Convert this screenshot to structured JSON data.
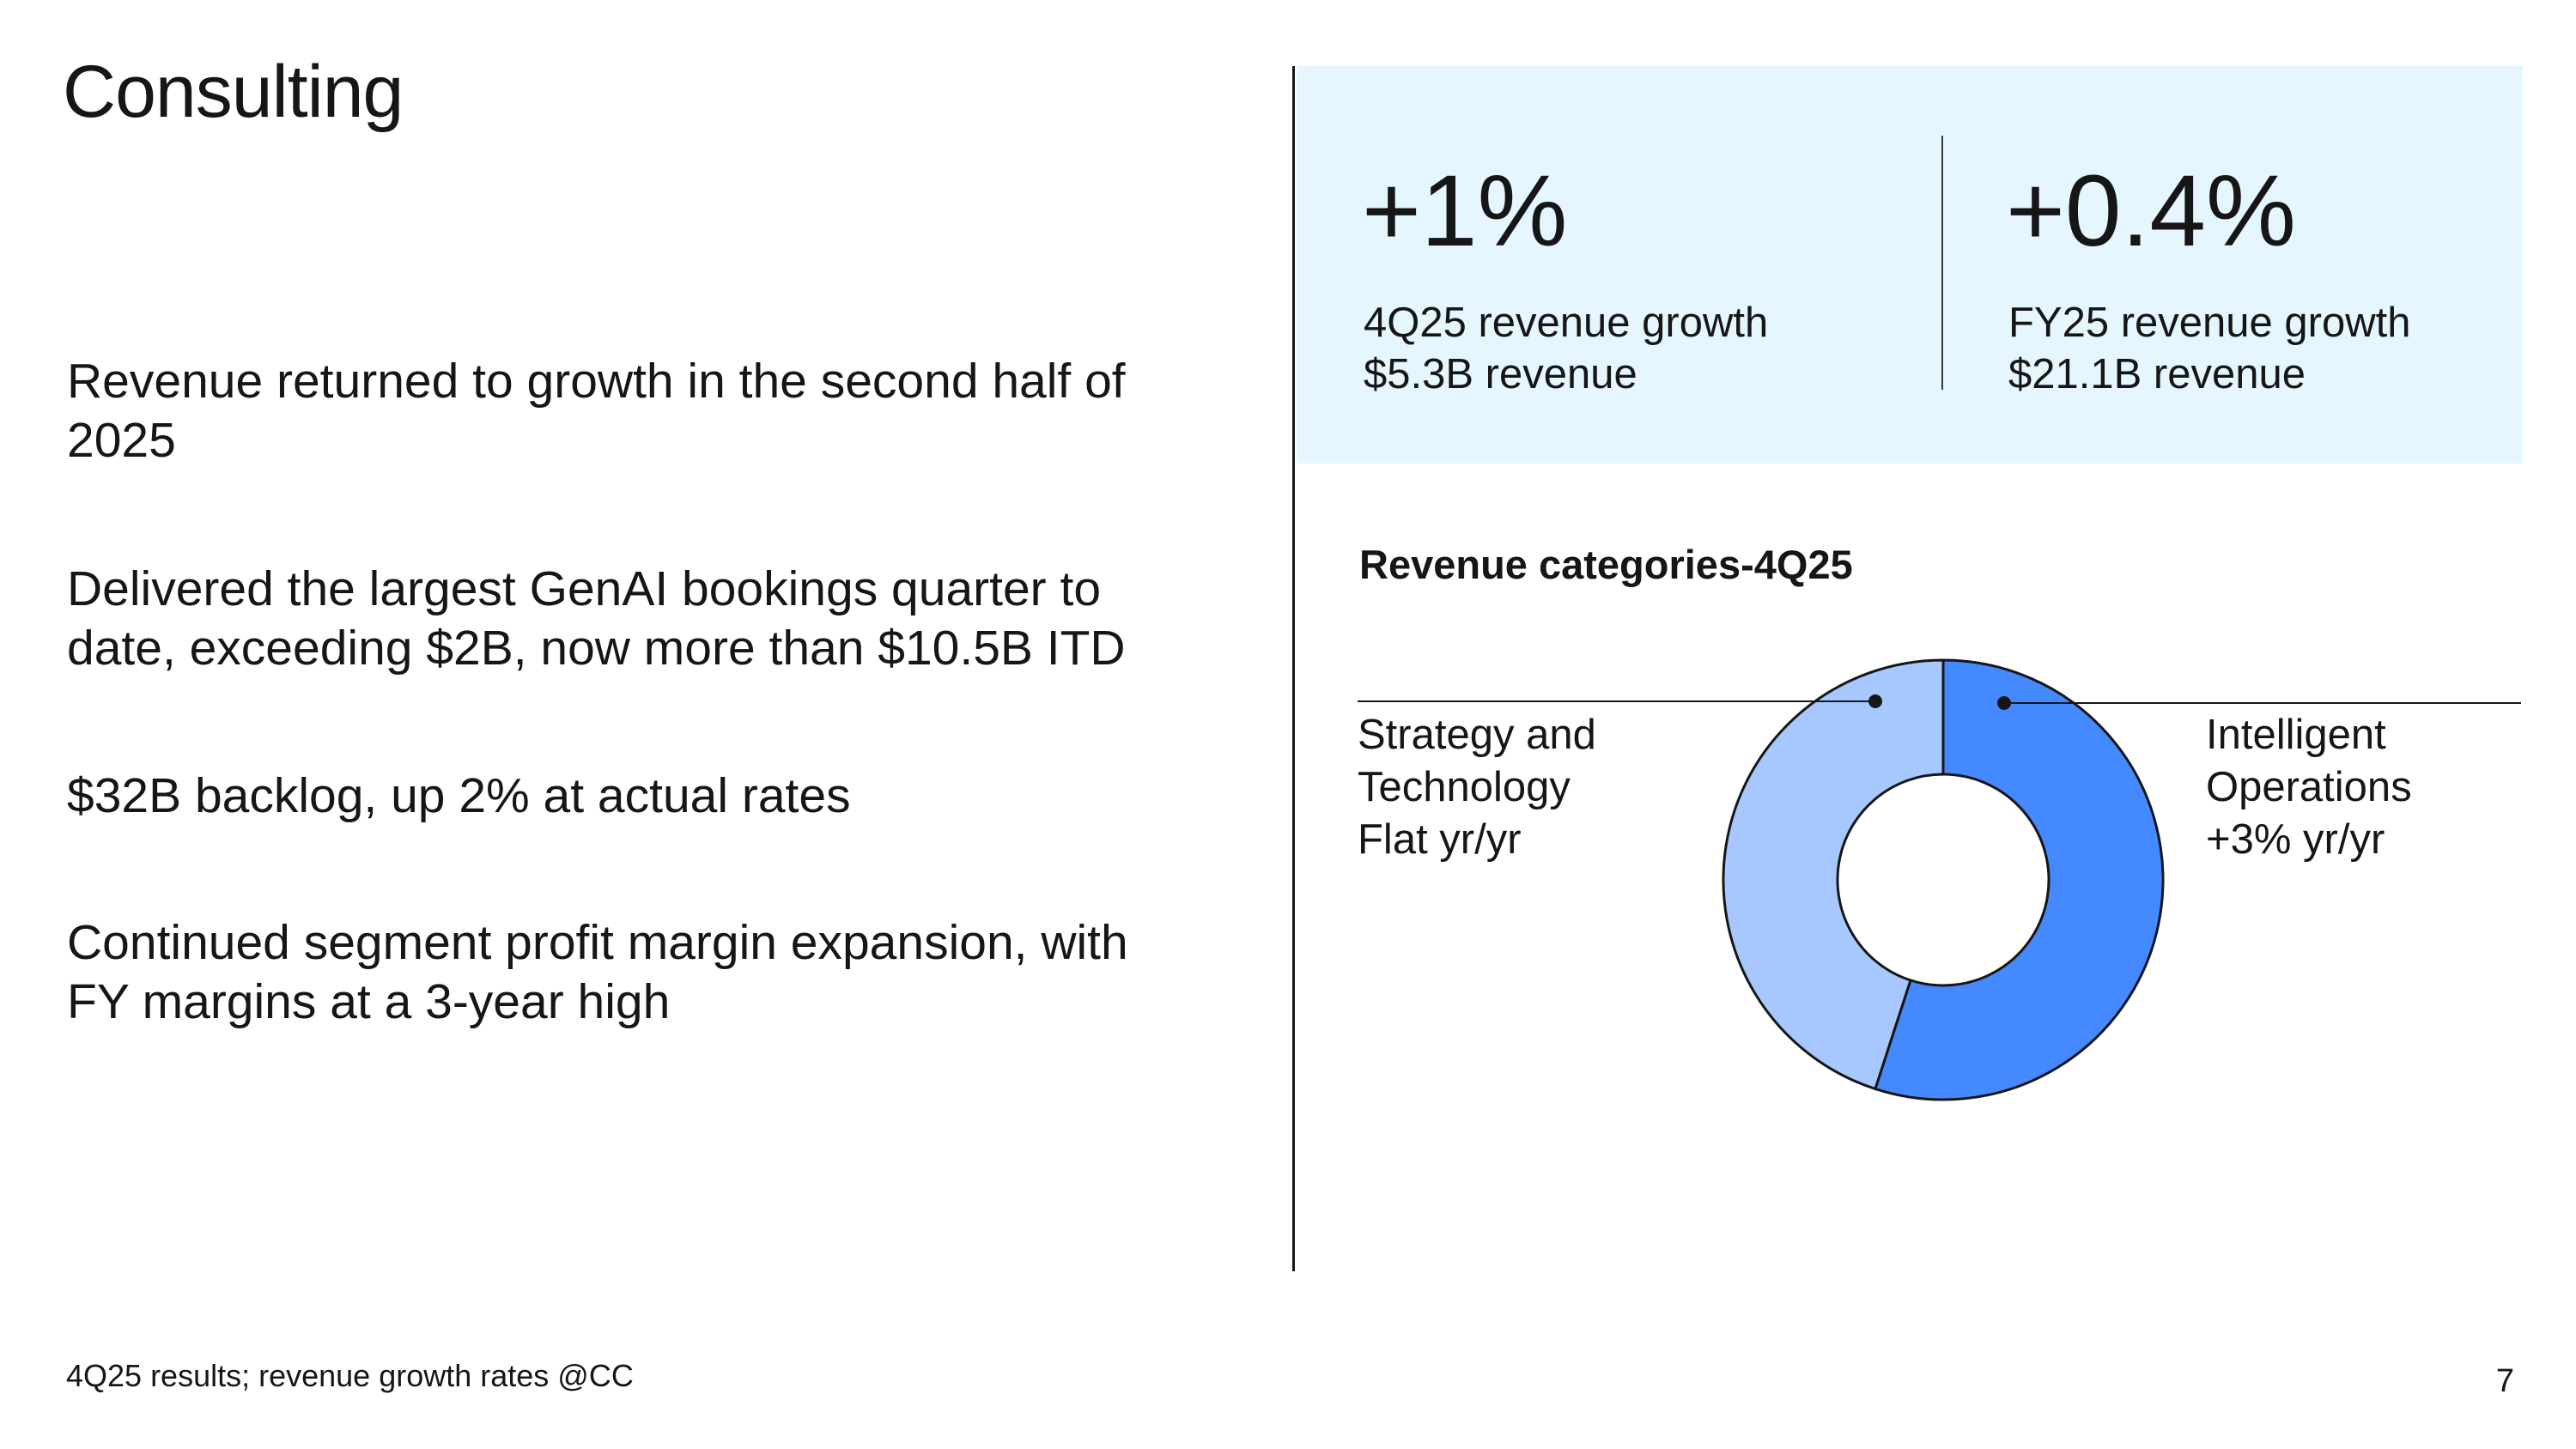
{
  "title": "Consulting",
  "bullets": [
    "Revenue returned to growth in the second half of 2025",
    "Delivered the largest GenAI bookings quarter to date, exceeding $2B, now more than $10.5B ITD",
    "$32B backlog, up 2% at actual rates",
    "Continued segment profit margin expansion, with FY margins at a 3-year high"
  ],
  "kpis": [
    {
      "value": "+1%",
      "line1": "4Q25 revenue growth",
      "line2": "$5.3B revenue"
    },
    {
      "value": "+0.4%",
      "line1": "FY25 revenue growth",
      "line2": "$21.1B revenue"
    }
  ],
  "colors": {
    "panel": "#e5f6ff",
    "intelligent_operations": "#4589ff",
    "strategy_technology": "#a6c8ff"
  },
  "chart_data": {
    "type": "pie",
    "title": "Revenue categories-4Q25",
    "slices": [
      {
        "name": "Intelligent Operations",
        "share": 55,
        "labels": [
          "Intelligent",
          "Operations",
          "+3% yr/yr"
        ],
        "color": "#4589ff"
      },
      {
        "name": "Strategy and Technology",
        "share": 45,
        "labels": [
          "Strategy and",
          "Technology",
          "Flat yr/yr"
        ],
        "color": "#a6c8ff"
      }
    ]
  },
  "footer": {
    "note": "4Q25 results; revenue growth rates @CC",
    "page": "7"
  }
}
